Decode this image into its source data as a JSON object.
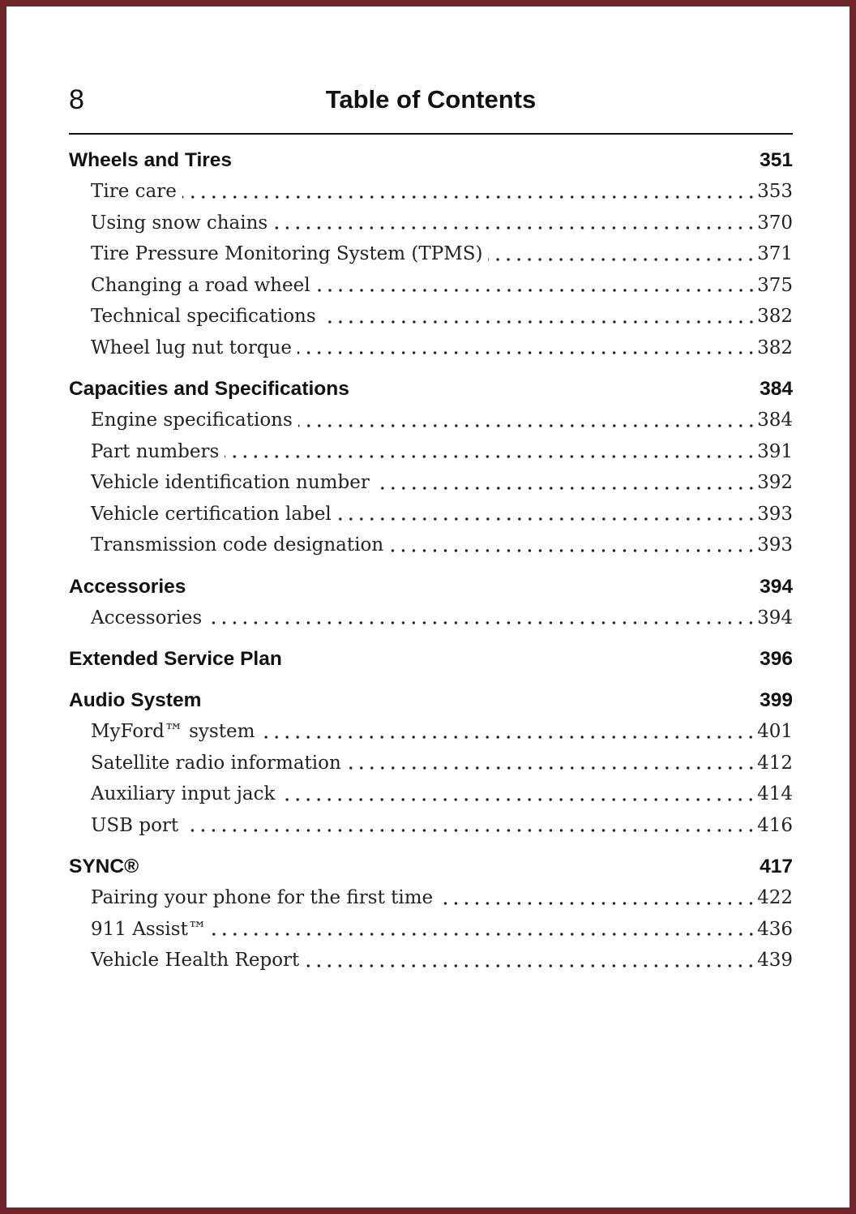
{
  "page": {
    "number": "8",
    "title": "Table of Contents"
  },
  "colors": {
    "page_frame": "#702428",
    "text": "#1a1a1a"
  },
  "sections": [
    {
      "title": "Wheels and Tires",
      "page": "351",
      "items": [
        {
          "label": "Tire care",
          "page": "353"
        },
        {
          "label": "Using snow chains",
          "page": "370"
        },
        {
          "label": "Tire Pressure Monitoring System (TPMS)",
          "page": "371"
        },
        {
          "label": "Changing a road wheel",
          "page": "375"
        },
        {
          "label": "Technical specifications",
          "page": "382"
        },
        {
          "label": "Wheel lug nut torque",
          "page": "382"
        }
      ]
    },
    {
      "title": "Capacities and Specifications",
      "page": "384",
      "items": [
        {
          "label": "Engine specifications",
          "page": "384"
        },
        {
          "label": "Part numbers",
          "page": "391"
        },
        {
          "label": "Vehicle identification number",
          "page": "392"
        },
        {
          "label": "Vehicle certification label",
          "page": "393"
        },
        {
          "label": "Transmission code designation",
          "page": "393"
        }
      ]
    },
    {
      "title": "Accessories",
      "page": "394",
      "items": [
        {
          "label": "Accessories",
          "page": "394"
        }
      ]
    },
    {
      "title": "Extended Service Plan",
      "page": "396",
      "items": []
    },
    {
      "title": "Audio System",
      "page": "399",
      "items": [
        {
          "label": "MyFord™ system",
          "page": "401"
        },
        {
          "label": "Satellite radio information",
          "page": "412"
        },
        {
          "label": "Auxiliary input jack",
          "page": "414"
        },
        {
          "label": "USB port",
          "page": "416"
        }
      ]
    },
    {
      "title": "SYNC®",
      "page": "417",
      "items": [
        {
          "label": "Pairing your phone for the first time",
          "page": "422"
        },
        {
          "label": "911 Assist™",
          "page": "436"
        },
        {
          "label": "Vehicle Health Report",
          "page": "439"
        }
      ]
    }
  ]
}
